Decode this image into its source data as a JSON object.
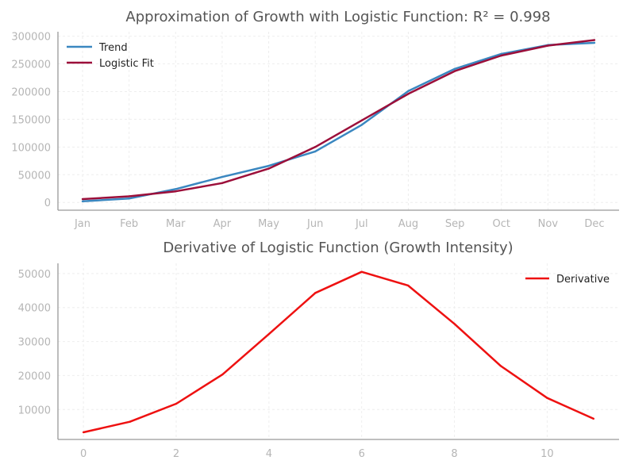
{
  "chart_data": [
    {
      "type": "line",
      "title": "Approximation of Growth with Logistic Function: R² = 0.998",
      "xlabel": "",
      "ylabel": "",
      "categories": [
        "Jan",
        "Feb",
        "Mar",
        "Apr",
        "May",
        "Jun",
        "Jul",
        "Aug",
        "Sep",
        "Oct",
        "Nov",
        "Dec"
      ],
      "yticks": [
        "0",
        "50000",
        "100000",
        "150000",
        "200000",
        "250000",
        "300000"
      ],
      "ylim": [
        -14000,
        308000
      ],
      "grid": true,
      "legend_position": "top-left",
      "series": [
        {
          "name": "Trend",
          "color": "#3a87c0",
          "values": [
            2000,
            7000,
            24000,
            46000,
            66000,
            92000,
            140000,
            201000,
            241000,
            268000,
            284000,
            288000
          ]
        },
        {
          "name": "Logistic Fit",
          "color": "#9c0f3a",
          "values": [
            6000,
            11000,
            20000,
            35000,
            61000,
            100000,
            148000,
            196000,
            237000,
            265000,
            283000,
            293000
          ]
        }
      ]
    },
    {
      "type": "line",
      "title": "Derivative of Logistic Function (Growth Intensity)",
      "xlabel": "",
      "ylabel": "",
      "x": [
        0,
        1,
        2,
        3,
        4,
        5,
        6,
        7,
        8,
        9,
        10,
        11
      ],
      "xticks": [
        "0",
        "2",
        "4",
        "6",
        "8",
        "10"
      ],
      "yticks": [
        "10000",
        "20000",
        "30000",
        "40000",
        "50000"
      ],
      "xlim": [
        -0.55,
        11.55
      ],
      "ylim": [
        1200,
        53000
      ],
      "grid": true,
      "legend_position": "top-right",
      "series": [
        {
          "name": "Derivative",
          "color": "#ee1111",
          "values": [
            3300,
            6400,
            11700,
            20300,
            32200,
            44300,
            50500,
            46500,
            35200,
            22800,
            13400,
            7300
          ]
        }
      ]
    }
  ]
}
